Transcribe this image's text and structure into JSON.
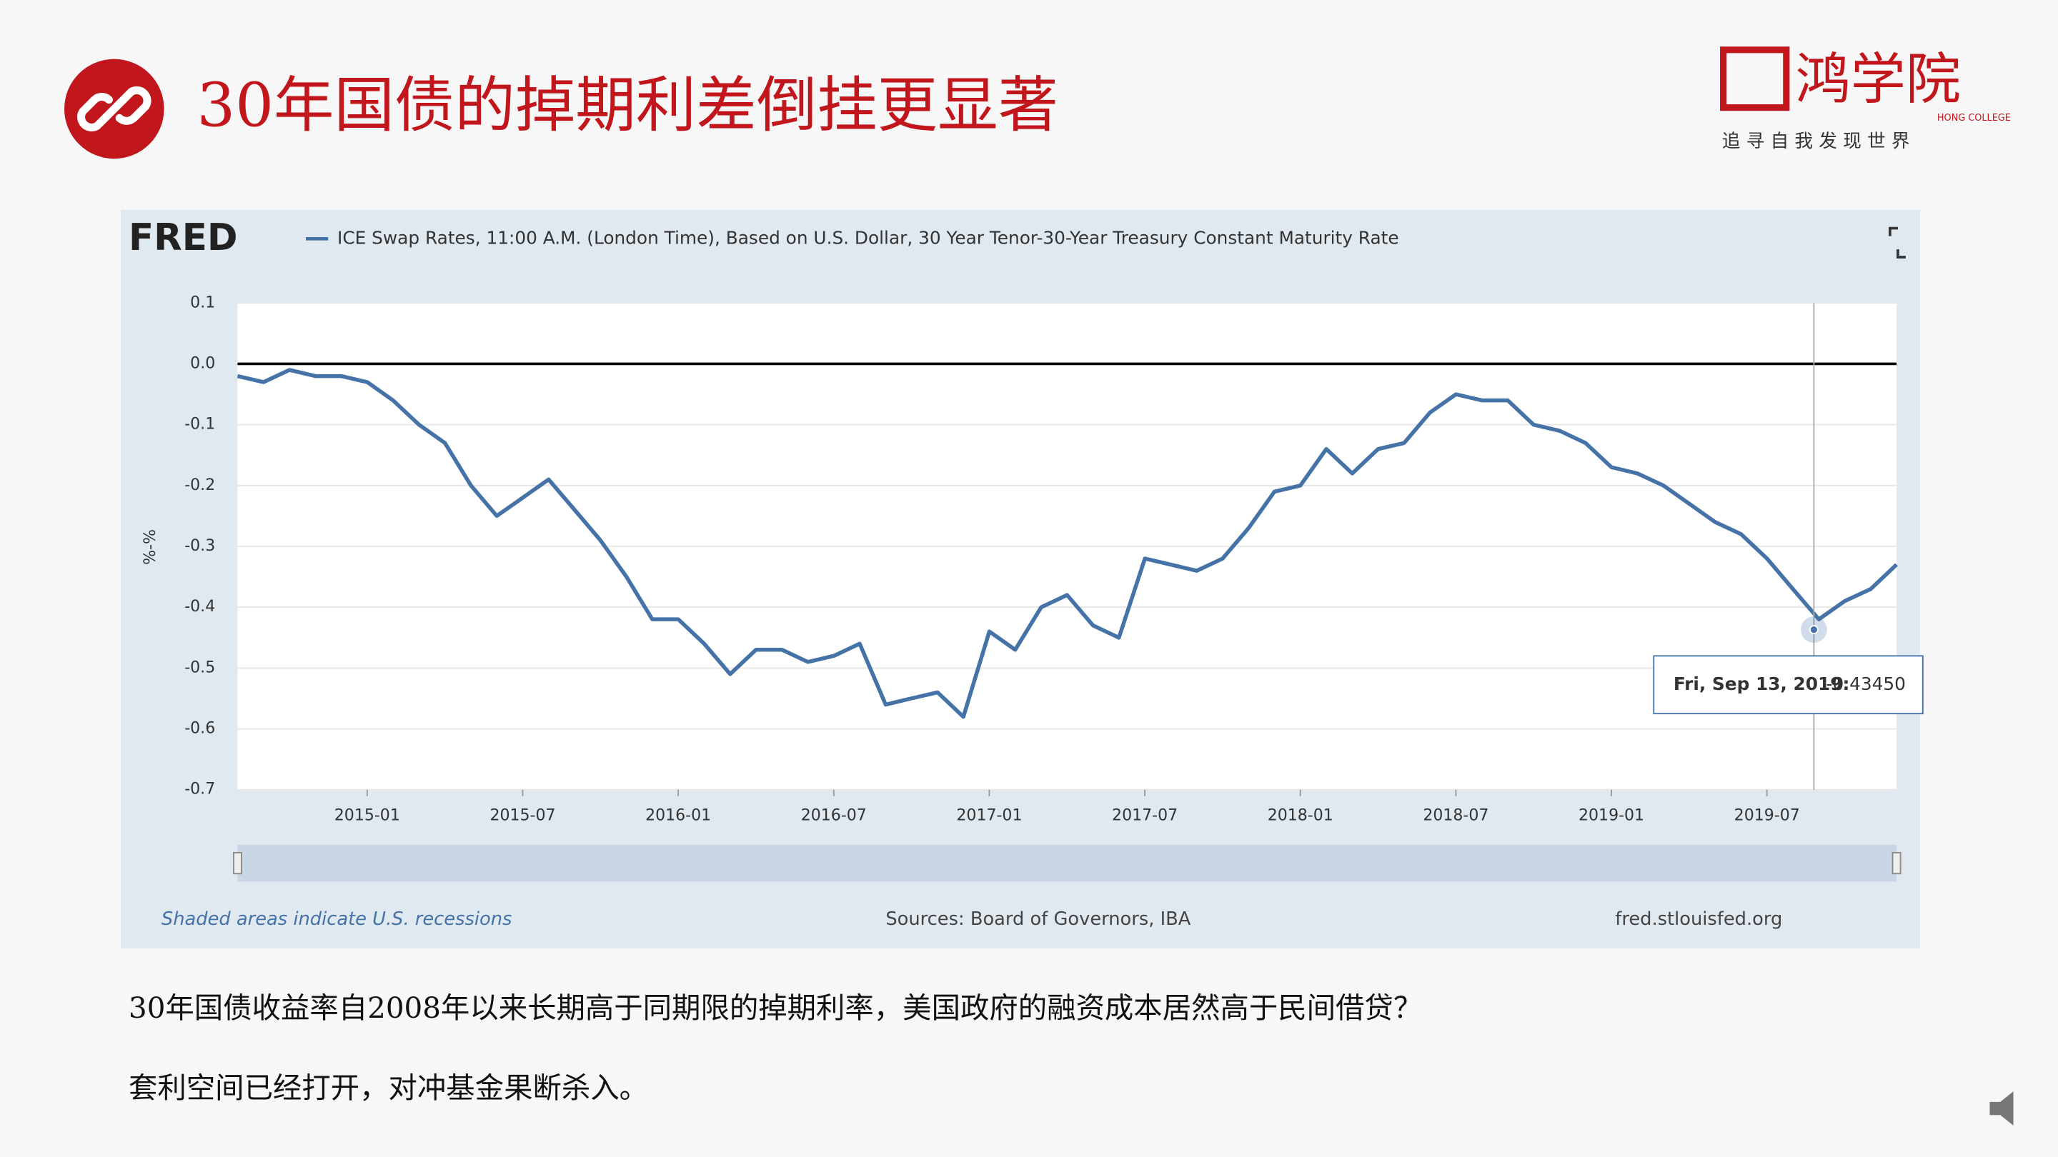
{
  "slide": {
    "title": "30年国债的掉期利差倒挂更显著",
    "logo": "鸿学院",
    "logo_sub": "HONG COLLEGE",
    "motto": "追 寻 自 我   发 现 世 界",
    "paragraphs": [
      "30年国债收益率自2008年以来长期高于同期限的掉期利率，美国政府的融资成本居然高于民间借贷？",
      "套利空间已经打开，对冲基金果断杀入。"
    ]
  },
  "chart_data": {
    "type": "line",
    "brand": "FRED",
    "ylabel": "%-%",
    "footer_left": "Shaded areas indicate U.S. recessions",
    "footer_center": "Sources: Board of Governors, IBA",
    "footer_right": "fred.stlouisfed.org",
    "tooltip_date": "Fri, Sep 13, 2019:",
    "tooltip_value": "-0.43450",
    "x": [
      "2014-08",
      "2014-09",
      "2014-10",
      "2014-11",
      "2014-12",
      "2015-01",
      "2015-02",
      "2015-03",
      "2015-04",
      "2015-05",
      "2015-06",
      "2015-07",
      "2015-08",
      "2015-09",
      "2015-10",
      "2015-11",
      "2015-12",
      "2016-01",
      "2016-02",
      "2016-03",
      "2016-04",
      "2016-05",
      "2016-06",
      "2016-07",
      "2016-08",
      "2016-09",
      "2016-10",
      "2016-11",
      "2016-12",
      "2017-01",
      "2017-02",
      "2017-03",
      "2017-04",
      "2017-05",
      "2017-06",
      "2017-07",
      "2017-08",
      "2017-09",
      "2017-10",
      "2017-11",
      "2017-12",
      "2018-01",
      "2018-02",
      "2018-03",
      "2018-04",
      "2018-05",
      "2018-06",
      "2018-07",
      "2018-08",
      "2018-09",
      "2018-10",
      "2018-11",
      "2018-12",
      "2019-01",
      "2019-02",
      "2019-03",
      "2019-04",
      "2019-05",
      "2019-06",
      "2019-07",
      "2019-08",
      "2019-09",
      "2019-10",
      "2019-11",
      "2019-12"
    ],
    "series": [
      {
        "name": "ICE Swap Rates, 11:00 A.M. (London Time), Based on U.S. Dollar, 30 Year Tenor-30-Year Treasury Constant Maturity Rate",
        "color": "#4572a7",
        "values": [
          -0.02,
          -0.03,
          -0.01,
          -0.02,
          -0.02,
          -0.03,
          -0.06,
          -0.1,
          -0.13,
          -0.2,
          -0.25,
          -0.22,
          -0.19,
          -0.24,
          -0.29,
          -0.35,
          -0.42,
          -0.42,
          -0.46,
          -0.51,
          -0.47,
          -0.47,
          -0.49,
          -0.48,
          -0.46,
          -0.56,
          -0.55,
          -0.54,
          -0.58,
          -0.44,
          -0.47,
          -0.4,
          -0.38,
          -0.43,
          -0.45,
          -0.32,
          -0.33,
          -0.34,
          -0.32,
          -0.27,
          -0.21,
          -0.2,
          -0.14,
          -0.18,
          -0.14,
          -0.13,
          -0.08,
          -0.05,
          -0.06,
          -0.06,
          -0.1,
          -0.11,
          -0.13,
          -0.17,
          -0.18,
          -0.2,
          -0.23,
          -0.26,
          -0.28,
          -0.32,
          -0.37,
          -0.42,
          -0.39,
          -0.37,
          -0.33
        ]
      }
    ],
    "xlim": [
      "2014-08",
      "2019-12"
    ],
    "xticks": [
      "2015-01",
      "2015-07",
      "2016-01",
      "2016-07",
      "2017-01",
      "2017-07",
      "2018-01",
      "2018-07",
      "2019-01",
      "2019-07"
    ],
    "ylim": [
      -0.7,
      0.1
    ],
    "yticks": [
      0.1,
      {
        "value": 0,
        "label": "0.0"
      },
      -0.1,
      -0.2,
      -0.3,
      -0.4,
      -0.5,
      -0.6,
      -0.7
    ],
    "grid": true
  }
}
